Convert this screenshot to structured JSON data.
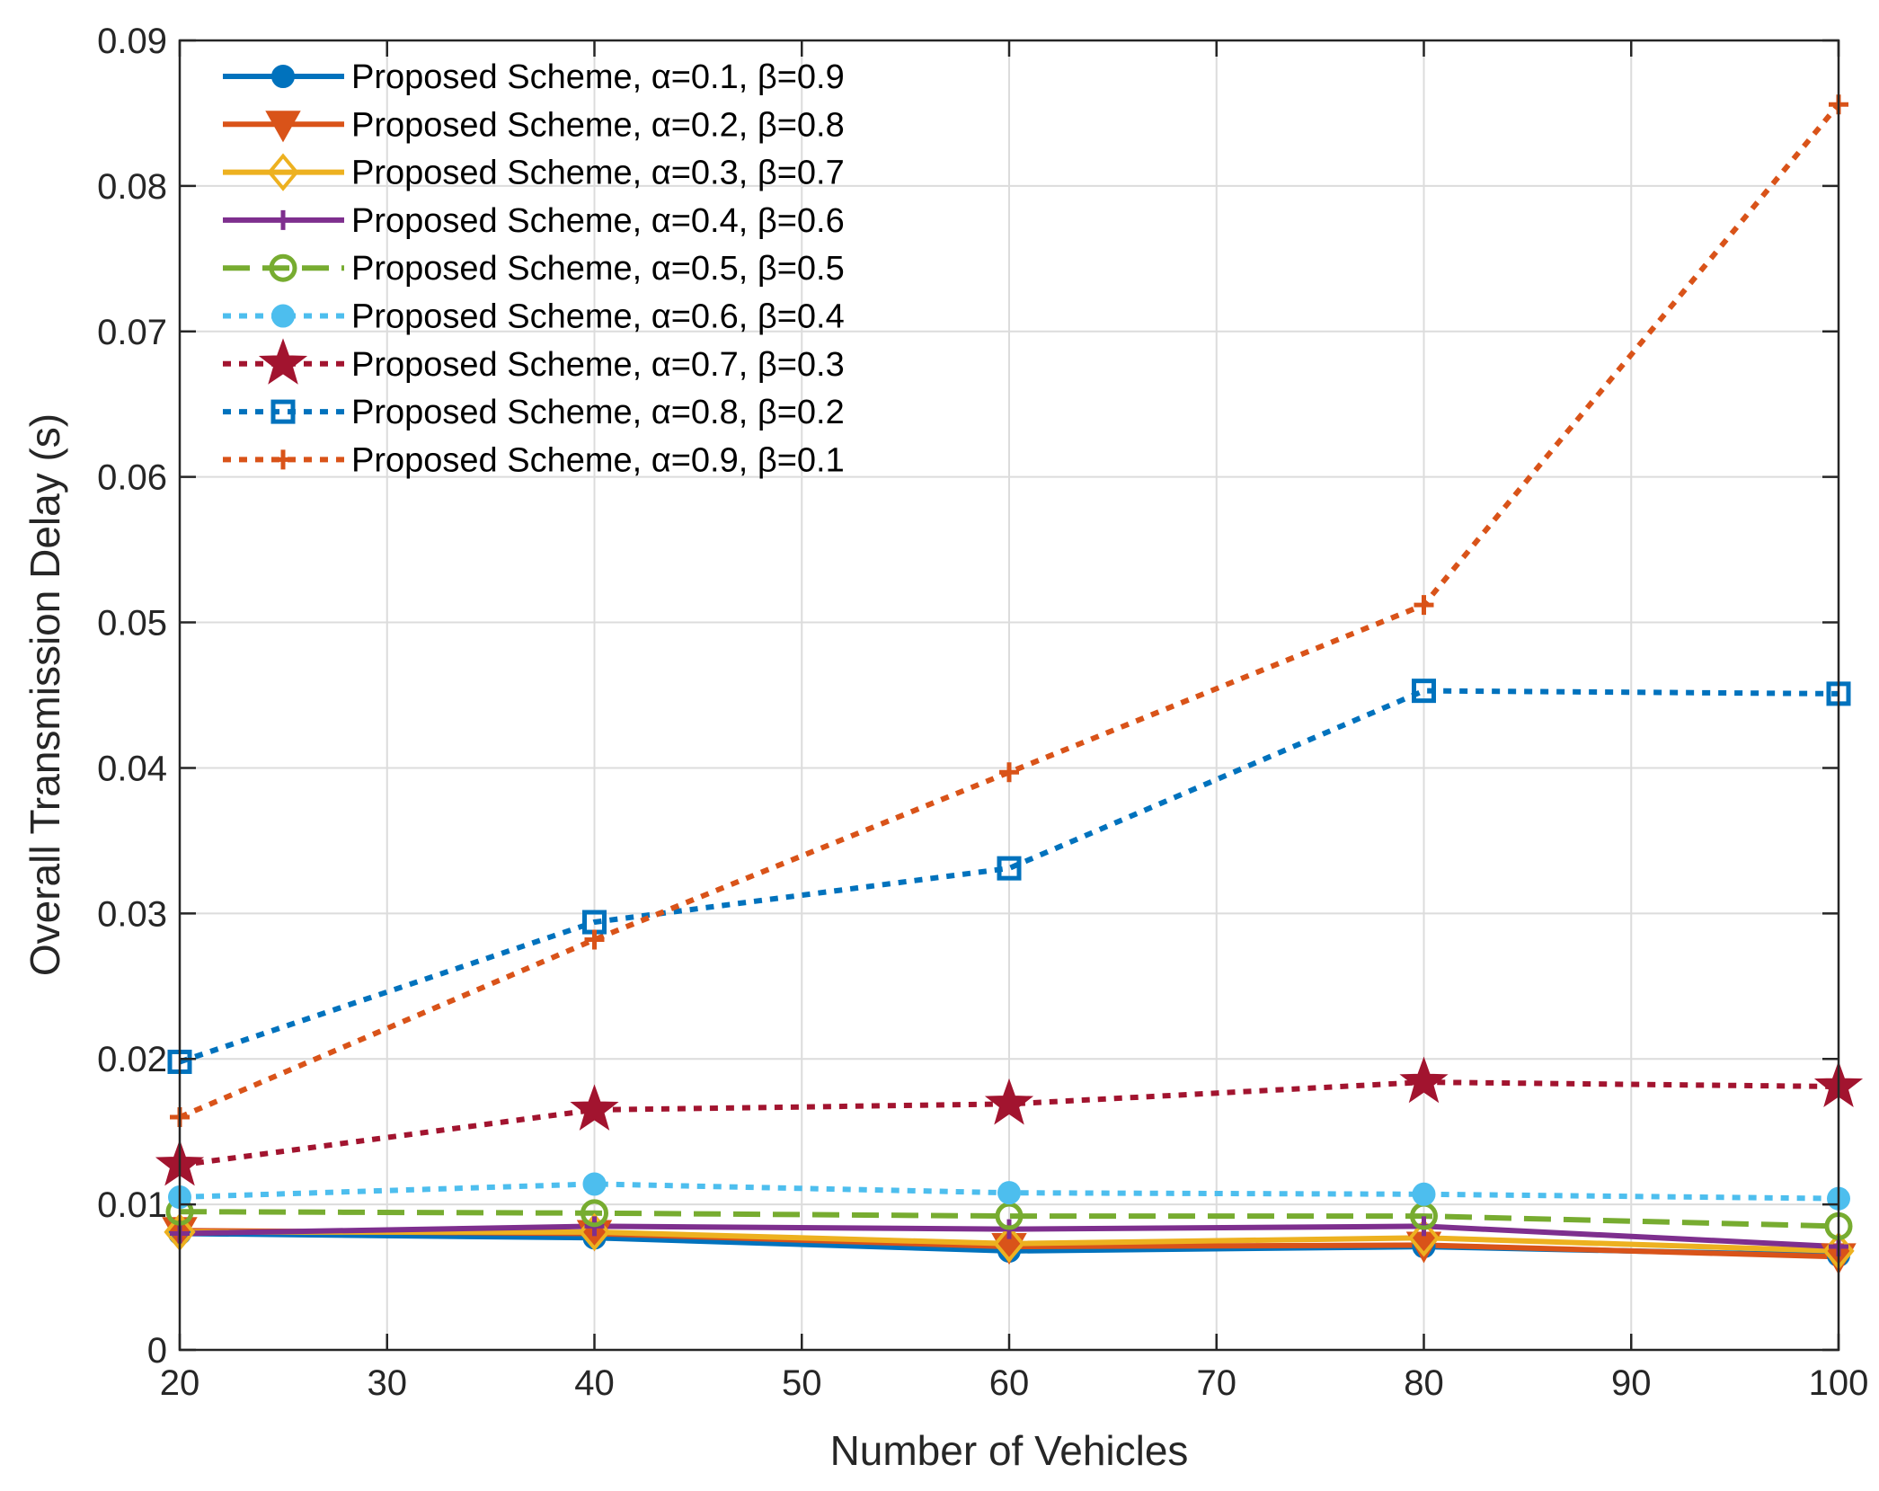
{
  "chart_data": {
    "type": "line",
    "title": "",
    "xlabel": "Number of Vehicles",
    "ylabel": "Overall Transmission Delay (s)",
    "xlim": [
      20,
      100
    ],
    "ylim": [
      0,
      0.09
    ],
    "x_ticks": [
      20,
      30,
      40,
      50,
      60,
      70,
      80,
      90,
      100
    ],
    "x_tick_labels": [
      "20",
      "30",
      "40",
      "50",
      "60",
      "70",
      "80",
      "90",
      "100"
    ],
    "y_ticks": [
      0,
      0.01,
      0.02,
      0.03,
      0.04,
      0.05,
      0.06,
      0.07,
      0.08,
      0.09
    ],
    "y_tick_labels": [
      "0",
      "0.01",
      "0.02",
      "0.03",
      "0.04",
      "0.05",
      "0.06",
      "0.07",
      "0.08",
      "0.09"
    ],
    "grid": true,
    "legend_position": "top-left",
    "x": [
      20,
      40,
      60,
      80,
      100
    ],
    "series": [
      {
        "name": "Proposed Scheme, α=0.1, β=0.9",
        "color": "#0072BD",
        "dash": "solid",
        "marker": "circle-filled",
        "values": [
          0.008,
          0.0077,
          0.0068,
          0.0071,
          0.0065
        ]
      },
      {
        "name": "Proposed Scheme, α=0.2, β=0.8",
        "color": "#D95319",
        "dash": "solid",
        "marker": "triangle-down-filled",
        "values": [
          0.0082,
          0.008,
          0.0071,
          0.0072,
          0.0064
        ]
      },
      {
        "name": "Proposed Scheme, α=0.3, β=0.7",
        "color": "#EDB120",
        "dash": "solid",
        "marker": "diamond-open",
        "values": [
          0.0081,
          0.0081,
          0.0073,
          0.0077,
          0.0068
        ]
      },
      {
        "name": "Proposed Scheme, α=0.4, β=0.6",
        "color": "#7E2F8E",
        "dash": "solid",
        "marker": "plus",
        "values": [
          0.008,
          0.0085,
          0.0083,
          0.0085,
          0.0071
        ]
      },
      {
        "name": "Proposed Scheme, α=0.5, β=0.5",
        "color": "#77AC30",
        "dash": "dashed",
        "marker": "circle-open",
        "values": [
          0.0095,
          0.0094,
          0.0092,
          0.0092,
          0.0085
        ]
      },
      {
        "name": "Proposed Scheme, α=0.6, β=0.4",
        "color": "#4DBEEE",
        "dash": "dotted",
        "marker": "circle-filled",
        "values": [
          0.0105,
          0.0114,
          0.0108,
          0.0107,
          0.0104
        ]
      },
      {
        "name": "Proposed Scheme, α=0.7, β=0.3",
        "color": "#A2142F",
        "dash": "dotted",
        "marker": "star-filled",
        "values": [
          0.0127,
          0.0165,
          0.0169,
          0.0184,
          0.0181
        ]
      },
      {
        "name": "Proposed Scheme, α=0.8, β=0.2",
        "color": "#0072BD",
        "dash": "dotted",
        "marker": "square-open",
        "values": [
          0.0198,
          0.0294,
          0.0331,
          0.0453,
          0.0451
        ]
      },
      {
        "name": "Proposed Scheme, α=0.9, β=0.1",
        "color": "#D95319",
        "dash": "dotted",
        "marker": "plus",
        "values": [
          0.016,
          0.0282,
          0.0397,
          0.0512,
          0.0856
        ]
      }
    ]
  }
}
